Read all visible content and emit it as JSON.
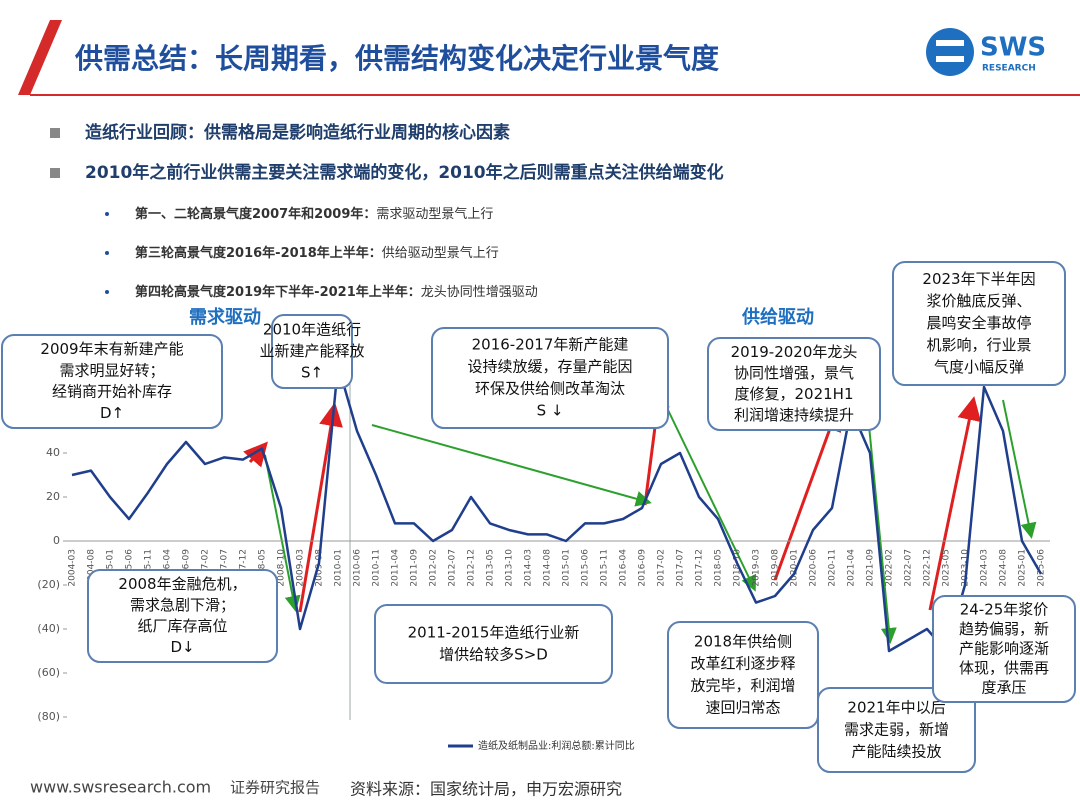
{
  "header": {
    "title": "供需总结：长周期看，供需结构变化决定行业景气度"
  },
  "logo": {
    "main": "SWS",
    "sub": "RESEARCH"
  },
  "bullets": [
    "造纸行业回顾：供需格局是影响造纸行业周期的核心因素",
    "2010年之前行业供需主要关注需求端的变化，2010年之后则需重点关注供给端变化"
  ],
  "sub_bullets": [
    {
      "bold": "第一、二轮高景气度2007年和2009年：",
      "text": "需求驱动型景气上行"
    },
    {
      "bold": "第三轮高景气度2016年-2018年上半年：",
      "text": "供给驱动型景气上行"
    },
    {
      "bold": "第四轮高景气度2019年下半年-2021年上半年：",
      "text": "龙头协同性增强驱动"
    }
  ],
  "chart_data": {
    "type": "line",
    "categories": [
      "2004-03",
      "2004-08",
      "2005-01",
      "2005-06",
      "2005-11",
      "2006-04",
      "2006-09",
      "2007-02",
      "2007-07",
      "2007-12",
      "2008-05",
      "2008-10",
      "2009-03",
      "2009-08",
      "2010-01",
      "2010-06",
      "2010-11",
      "2011-04",
      "2011-09",
      "2012-02",
      "2012-07",
      "2012-12",
      "2013-05",
      "2013-10",
      "2014-03",
      "2014-08",
      "2015-01",
      "2015-06",
      "2015-11",
      "2016-04",
      "2016-09",
      "2017-02",
      "2017-07",
      "2017-12",
      "2018-05",
      "2018-10",
      "2019-03",
      "2019-08",
      "2020-01",
      "2020-06",
      "2020-11",
      "2021-04",
      "2021-09",
      "2022-02",
      "2022-07",
      "2022-12",
      "2023-05",
      "2023-10",
      "2024-03",
      "2024-08",
      "2025-01",
      "2025-06"
    ],
    "series": [
      {
        "name": "造纸及纸制品业:利润总额:累计同比",
        "color": "#1f3e8c",
        "values": [
          30,
          32,
          20,
          10,
          22,
          35,
          45,
          35,
          38,
          37,
          42,
          15,
          -40,
          -10,
          80,
          50,
          30,
          8,
          8,
          0,
          5,
          20,
          8,
          5,
          3,
          3,
          0,
          8,
          8,
          10,
          15,
          35,
          40,
          20,
          10,
          -10,
          -28,
          -25,
          -15,
          5,
          15,
          60,
          40,
          -50,
          -45,
          -40,
          -50,
          -20,
          70,
          50,
          0,
          -15
        ]
      }
    ],
    "ylim": [
      -80,
      100
    ],
    "yticks": [
      40,
      20,
      0,
      {
        "value": -20,
        "label": "(20)"
      },
      {
        "value": -40,
        "label": "(40)"
      },
      {
        "value": -60,
        "label": "(60)"
      },
      {
        "value": -80,
        "label": "(80)"
      }
    ],
    "labels": [
      "需求驱动",
      "供给驱动"
    ],
    "annotations": [
      {
        "lines": [
          "2009年末有新建产能",
          "需求明显好转；",
          "经销商开始补库存",
          "D↑"
        ]
      },
      {
        "lines": [
          "2010年造纸行",
          "业新建产能释放",
          "S↑"
        ]
      },
      {
        "lines": [
          "2016-2017年新产能建",
          "设持续放缓，存量产能因",
          "环保及供给侧改革淘汰",
          "S ↓"
        ]
      },
      {
        "lines": [
          "2019-2020年龙头",
          "协同性增强，景气",
          "度修复，2021H1",
          "利润增速持续提升"
        ]
      },
      {
        "lines": [
          "2023年下半年因",
          "浆价触底反弹、",
          "晨鸣安全事故停",
          "机影响，行业景",
          "气度小幅反弹"
        ]
      },
      {
        "lines": [
          "2008年金融危机，",
          "需求急剧下滑；",
          "纸厂库存高位",
          "D↓"
        ]
      },
      {
        "lines": [
          "2011-2015年造纸行业新",
          "增供给较多S>D"
        ]
      },
      {
        "lines": [
          "2018年供给侧",
          "改革红利逐步释",
          "放完毕，利润增",
          "速回归常态"
        ]
      },
      {
        "lines": [
          "2021年中以后",
          "需求走弱，新增",
          "产能陆续投放"
        ]
      },
      {
        "lines": [
          "24-25年浆价",
          "趋势偏弱，新",
          "产能影响逐渐",
          "体现，供需再",
          "度承压"
        ]
      }
    ]
  },
  "footer": {
    "site": "www.swsresearch.com",
    "report": "证券研究报告",
    "source": "资料来源：国家统计局，申万宏源研究"
  }
}
